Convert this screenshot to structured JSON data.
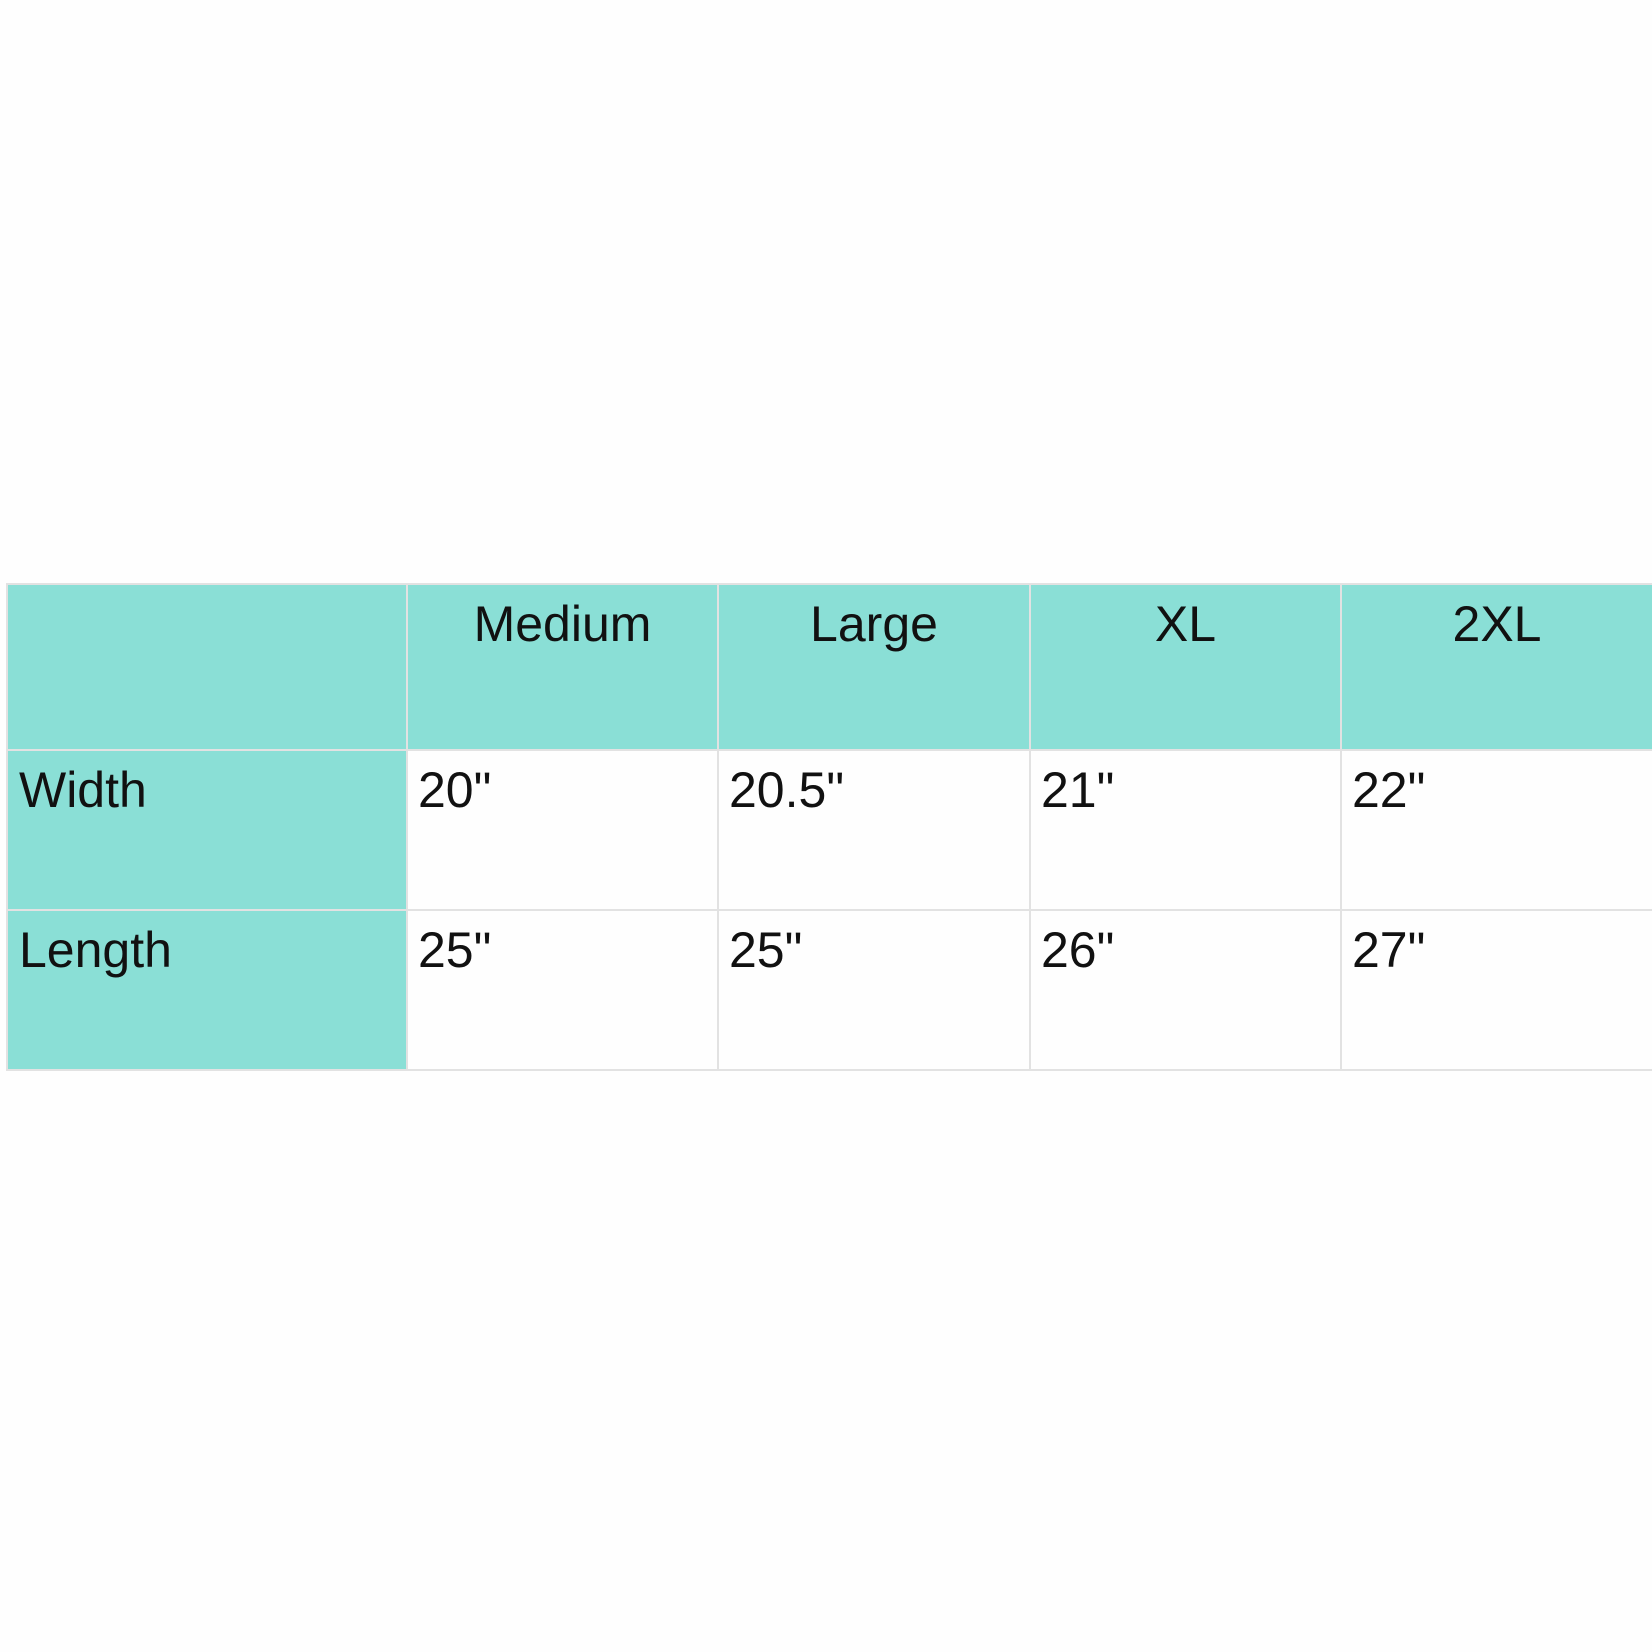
{
  "colors": {
    "header_bg": "#8adfd6",
    "cell_bg": "#ffffff",
    "border": "#e2e2e2"
  },
  "table": {
    "corner": "",
    "columns": [
      "Medium",
      "Large",
      "XL",
      "2XL"
    ],
    "rows": [
      {
        "label": "Width",
        "values": [
          "20\"",
          "20.5\"",
          "21\"",
          "22\""
        ]
      },
      {
        "label": "Length",
        "values": [
          "25\"",
          "25\"",
          "26\"",
          "27\""
        ]
      }
    ]
  }
}
